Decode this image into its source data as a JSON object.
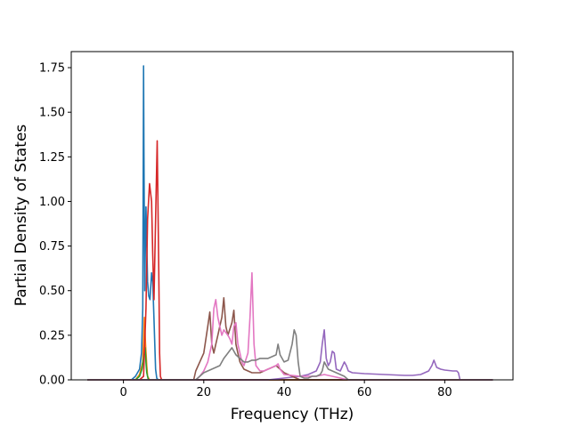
{
  "chart_data": {
    "type": "line",
    "title": "",
    "xlabel": "Frequency (THz)",
    "ylabel": "Partial Density of States",
    "xlim": [
      -13,
      97
    ],
    "ylim": [
      0,
      1.84
    ],
    "xticks": [
      0,
      20,
      40,
      60,
      80
    ],
    "xtick_labels": [
      "0",
      "20",
      "40",
      "60",
      "80"
    ],
    "yticks": [
      0,
      0.25,
      0.5,
      0.75,
      1.0,
      1.25,
      1.5,
      1.75
    ],
    "ytick_labels": [
      "0.00",
      "0.25",
      "0.50",
      "0.75",
      "1.00",
      "1.25",
      "1.50",
      "1.75"
    ],
    "grid": false,
    "legend": "none",
    "series": [
      {
        "color": "#1f77b4",
        "x": [
          -9,
          2,
          3,
          4,
          4.5,
          4.8,
          5.0,
          5.1,
          5.3,
          5.6,
          6.0,
          6.3,
          6.6,
          7.0,
          7.3,
          7.6,
          8.0,
          8.3,
          8.6,
          9,
          92
        ],
        "y": [
          0,
          0,
          0.02,
          0.06,
          0.15,
          0.4,
          1.76,
          1.3,
          0.5,
          0.97,
          0.55,
          0.47,
          0.45,
          0.6,
          0.55,
          0.34,
          0.06,
          0.01,
          0,
          0,
          0
        ]
      },
      {
        "color": "#ff7f0e",
        "x": [
          -9,
          3,
          4,
          4.8,
          5.2,
          5.5,
          5.8,
          6.0,
          6.5,
          7,
          92
        ],
        "y": [
          0,
          0,
          0.03,
          0.1,
          0.35,
          0.2,
          0.08,
          0.02,
          0,
          0,
          0
        ]
      },
      {
        "color": "#2ca02c",
        "x": [
          -9,
          3,
          4,
          4.6,
          5.0,
          5.4,
          5.6,
          5.8,
          6.2,
          7,
          92
        ],
        "y": [
          0,
          0,
          0.02,
          0.06,
          0.12,
          0.18,
          0.1,
          0.04,
          0,
          0,
          0
        ]
      },
      {
        "color": "#d62728",
        "x": [
          -9,
          4,
          5,
          5.6,
          6.0,
          6.5,
          7.0,
          7.3,
          7.6,
          8.0,
          8.4,
          8.8,
          9.0,
          9.2,
          9.5,
          92
        ],
        "y": [
          0,
          0,
          0.02,
          0.4,
          0.9,
          1.1,
          1.0,
          0.7,
          0.45,
          0.9,
          1.34,
          0.6,
          0.15,
          0.02,
          0,
          0
        ]
      },
      {
        "color": "#9467bd",
        "x": [
          -9,
          36,
          40,
          44,
          46,
          48,
          49,
          49.5,
          50,
          50.5,
          51,
          51.5,
          52,
          52.5,
          53,
          54,
          55,
          55.5,
          56,
          57,
          60,
          65,
          70,
          72,
          74,
          75,
          76,
          76.8,
          77.3,
          78,
          79,
          80,
          82,
          83,
          83.4,
          83.8,
          92
        ],
        "y": [
          0,
          0,
          0.01,
          0.02,
          0.03,
          0.05,
          0.1,
          0.2,
          0.28,
          0.12,
          0.08,
          0.1,
          0.16,
          0.15,
          0.06,
          0.05,
          0.1,
          0.08,
          0.05,
          0.04,
          0.035,
          0.03,
          0.025,
          0.025,
          0.03,
          0.04,
          0.05,
          0.08,
          0.11,
          0.07,
          0.06,
          0.055,
          0.05,
          0.05,
          0.04,
          0,
          0
        ]
      },
      {
        "color": "#8c564b",
        "x": [
          -9,
          17.5,
          18,
          19,
          20,
          21,
          21.5,
          22,
          22.5,
          23,
          23.5,
          24,
          24.5,
          25,
          25.5,
          26,
          27,
          27.5,
          28,
          28.5,
          29,
          29.5,
          30,
          31,
          32,
          33,
          34,
          35,
          36,
          37,
          38,
          39,
          40,
          42,
          44,
          92
        ],
        "y": [
          0,
          0,
          0.05,
          0.1,
          0.15,
          0.3,
          0.38,
          0.2,
          0.15,
          0.2,
          0.25,
          0.3,
          0.35,
          0.46,
          0.3,
          0.25,
          0.32,
          0.39,
          0.2,
          0.15,
          0.1,
          0.08,
          0.06,
          0.05,
          0.04,
          0.04,
          0.04,
          0.05,
          0.06,
          0.07,
          0.08,
          0.06,
          0.04,
          0.02,
          0,
          0
        ]
      },
      {
        "color": "#e377c2",
        "x": [
          -9,
          18,
          19,
          20,
          21,
          22,
          22.5,
          23,
          23.5,
          24,
          24.5,
          25,
          26,
          26.5,
          27,
          27.5,
          28,
          28.5,
          29,
          29.5,
          30,
          31,
          31.5,
          32,
          32.5,
          33,
          34,
          35,
          36,
          37,
          38,
          38.5,
          39,
          40,
          44,
          48,
          50,
          52,
          54,
          56,
          92
        ],
        "y": [
          0,
          0,
          0.02,
          0.05,
          0.1,
          0.2,
          0.4,
          0.45,
          0.35,
          0.3,
          0.25,
          0.28,
          0.25,
          0.23,
          0.2,
          0.3,
          0.32,
          0.2,
          0.15,
          0.1,
          0.08,
          0.15,
          0.35,
          0.6,
          0.2,
          0.08,
          0.05,
          0.05,
          0.06,
          0.07,
          0.08,
          0.09,
          0.06,
          0.03,
          0.02,
          0.02,
          0.03,
          0.02,
          0.01,
          0,
          0
        ]
      },
      {
        "color": "#7f7f7f",
        "x": [
          -9,
          18,
          19,
          20,
          21,
          22,
          23,
          24,
          25,
          26,
          27,
          28,
          29,
          30,
          31,
          32,
          33,
          34,
          35,
          36,
          37,
          38,
          38.5,
          39,
          40,
          41,
          42,
          42.5,
          43,
          43.5,
          44,
          45,
          46,
          47,
          48,
          49,
          49.5,
          50,
          50.5,
          51,
          52,
          53,
          54,
          55,
          55.5,
          56,
          57,
          92
        ],
        "y": [
          0,
          0,
          0.02,
          0.04,
          0.05,
          0.06,
          0.07,
          0.08,
          0.12,
          0.15,
          0.18,
          0.14,
          0.12,
          0.1,
          0.1,
          0.11,
          0.11,
          0.12,
          0.12,
          0.12,
          0.13,
          0.14,
          0.2,
          0.14,
          0.1,
          0.11,
          0.2,
          0.28,
          0.25,
          0.1,
          0.02,
          0.01,
          0.01,
          0.02,
          0.02,
          0.03,
          0.05,
          0.1,
          0.08,
          0.06,
          0.05,
          0.04,
          0.03,
          0.02,
          0.01,
          0,
          0,
          0
        ]
      }
    ]
  }
}
